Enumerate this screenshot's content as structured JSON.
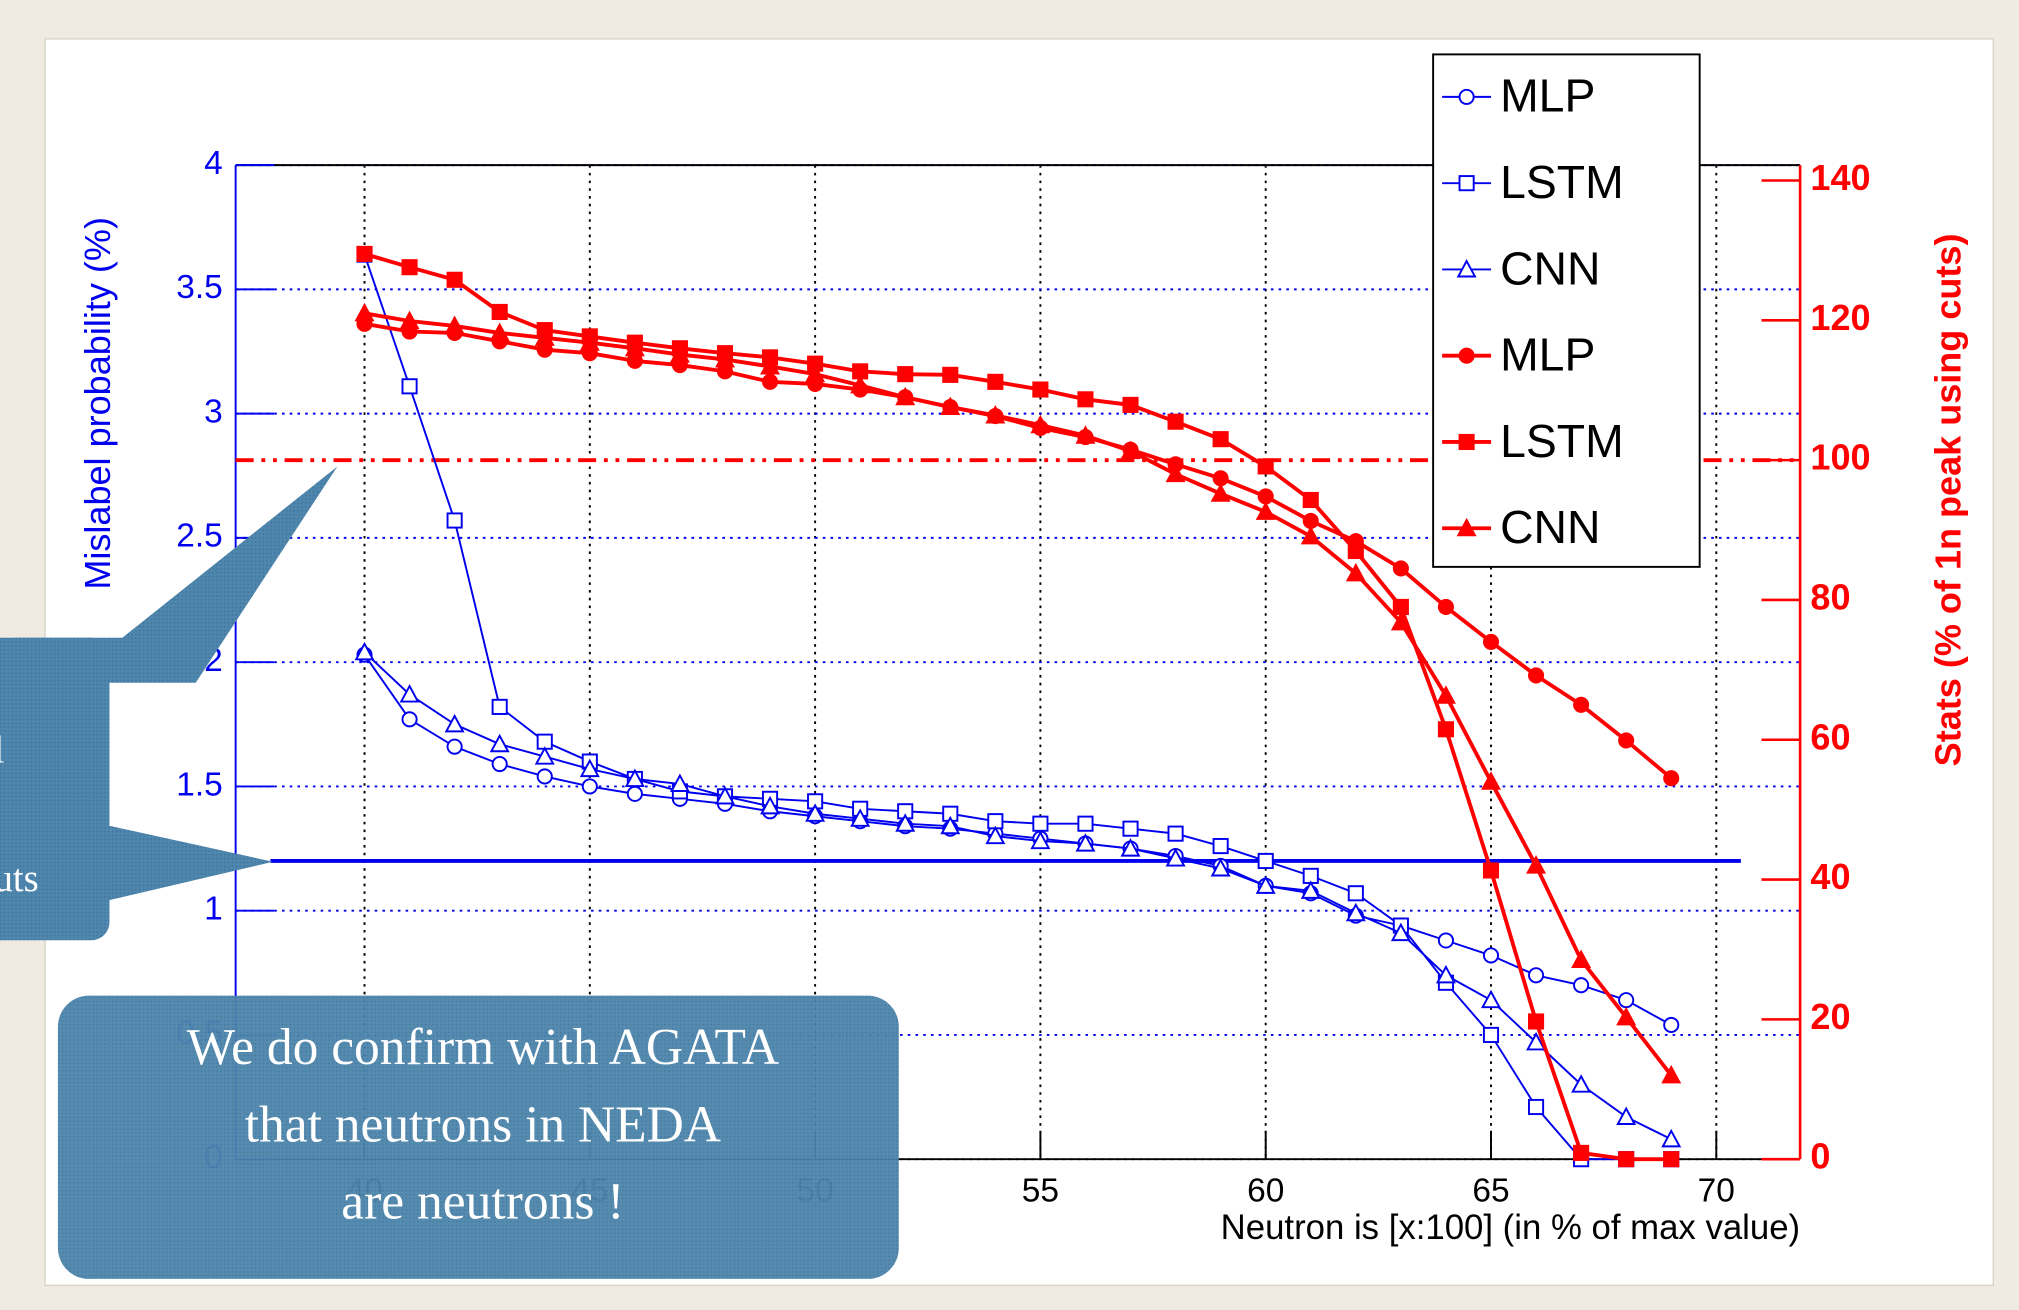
{
  "chart_data": {
    "type": "line",
    "xlabel": "Neutron is [x:100] (in % of max value)",
    "ylabel": "Mislabel probability (%)",
    "y2label": "Stats (% of 1n peak using cuts)",
    "x": [
      40,
      41,
      42,
      43,
      44,
      45,
      46,
      47,
      48,
      49,
      50,
      51,
      52,
      53,
      54,
      55,
      56,
      57,
      58,
      59,
      60,
      61,
      62,
      63,
      64,
      65,
      66,
      67,
      68,
      69
    ],
    "xlim": [
      37.14,
      71.86
    ],
    "xticks": [
      40,
      45,
      50,
      55,
      60,
      65,
      70
    ],
    "ylim": [
      0,
      4
    ],
    "yticks": [
      0,
      0.5,
      1,
      1.5,
      2,
      2.5,
      3,
      3.5,
      4
    ],
    "y2lim": [
      0,
      142.2
    ],
    "y2ticks": [
      0,
      20,
      40,
      60,
      80,
      100,
      120,
      140
    ],
    "grid": true,
    "legend": "top-right",
    "series": [
      {
        "name": "MLP",
        "color": "#0000ee",
        "marker": "circle",
        "filled": false,
        "axis": "y",
        "values": [
          2.03,
          1.77,
          1.66,
          1.59,
          1.54,
          1.5,
          1.47,
          1.45,
          1.43,
          1.4,
          1.38,
          1.36,
          1.34,
          1.33,
          1.31,
          1.29,
          1.27,
          1.25,
          1.22,
          1.18,
          1.1,
          1.07,
          0.98,
          0.94,
          0.88,
          0.82,
          0.74,
          0.7,
          0.64,
          0.54
        ]
      },
      {
        "name": "LSTM",
        "color": "#0000ee",
        "marker": "square",
        "filled": false,
        "axis": "y",
        "values": [
          3.64,
          3.11,
          2.57,
          1.82,
          1.68,
          1.6,
          1.53,
          1.48,
          1.46,
          1.45,
          1.44,
          1.41,
          1.4,
          1.39,
          1.36,
          1.35,
          1.35,
          1.33,
          1.31,
          1.26,
          1.2,
          1.14,
          1.07,
          0.94,
          0.71,
          0.5,
          0.21,
          0,
          0,
          0
        ]
      },
      {
        "name": "CNN",
        "color": "#0000ee",
        "marker": "triangle",
        "filled": false,
        "axis": "y",
        "values": [
          2.04,
          1.87,
          1.75,
          1.67,
          1.62,
          1.57,
          1.53,
          1.51,
          1.46,
          1.42,
          1.39,
          1.37,
          1.35,
          1.34,
          1.3,
          1.28,
          1.27,
          1.25,
          1.21,
          1.17,
          1.1,
          1.08,
          0.99,
          0.91,
          0.74,
          0.64,
          0.47,
          0.3,
          0.17,
          0.08
        ]
      },
      {
        "name": "MLP",
        "color": "#ff0000",
        "marker": "circle",
        "filled": true,
        "axis": "y2",
        "values": [
          119.5,
          118.4,
          118.2,
          117,
          115.8,
          115.3,
          114.2,
          113.6,
          112.7,
          111.2,
          110.9,
          110.1,
          109,
          107.6,
          106.3,
          104.6,
          103.3,
          101.5,
          99.4,
          97.4,
          94.8,
          91.3,
          88.4,
          84.5,
          79,
          74,
          69.2,
          65,
          59.9,
          54.5
        ]
      },
      {
        "name": "LSTM",
        "color": "#ff0000",
        "marker": "square",
        "filled": true,
        "axis": "y2",
        "values": [
          129.5,
          127.6,
          125.8,
          121.2,
          118.6,
          117.7,
          116.8,
          116,
          115.3,
          114.7,
          113.8,
          112.7,
          112.3,
          112.2,
          111.2,
          110.1,
          108.7,
          107.9,
          105.5,
          103,
          99.1,
          94.3,
          87,
          79,
          61.5,
          41.3,
          19.7,
          0.9,
          0,
          0
        ]
      },
      {
        "name": "CNN",
        "color": "#ff0000",
        "marker": "triangle",
        "filled": true,
        "axis": "y2",
        "values": [
          121,
          119.9,
          119.2,
          118.2,
          117.5,
          116.8,
          116,
          115.1,
          114.4,
          113.4,
          112.3,
          110.7,
          109,
          107.6,
          106.4,
          105,
          103.5,
          101.3,
          98,
          95.2,
          92.6,
          89.1,
          83.8,
          76.8,
          66.3,
          54,
          42,
          28.5,
          20.3,
          12
        ]
      }
    ],
    "hlines": [
      {
        "value": 1.2,
        "axis": "y",
        "color": "#0000ee",
        "style": "solid"
      },
      {
        "value": 100,
        "axis": "y2",
        "color": "#ff0000",
        "style": "dashdot"
      }
    ],
    "callouts": {
      "left": [
        "l",
        "uts"
      ],
      "main": [
        "We do confirm with AGATA",
        "that neutrons in NEDA",
        "are neutrons !"
      ]
    }
  }
}
